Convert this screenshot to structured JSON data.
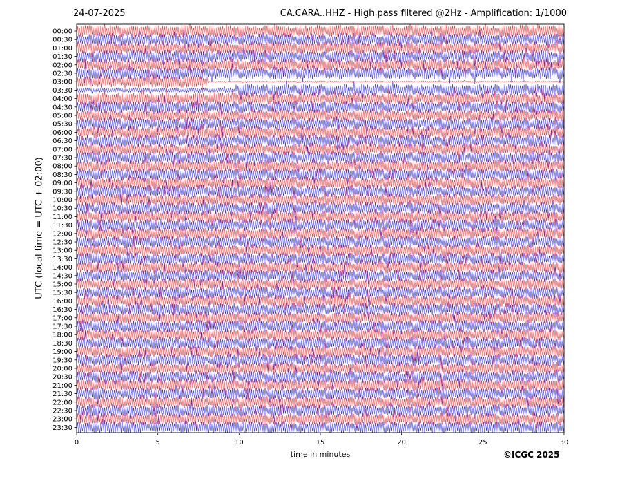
{
  "header": {
    "date": "24-07-2025",
    "title": "CA.CARA..HHZ - High pass filtered @2Hz - Amplification: 1/1000"
  },
  "footer": {
    "credit": "©ICGC 2025"
  },
  "colors": {
    "trace_a": "#ff0000",
    "trace_b": "#0000ff",
    "axes": "#000000",
    "background": "#ffffff"
  },
  "chart_data": {
    "type": "line",
    "title": "CA.CARA..HHZ - High pass filtered @2Hz - Amplification: 1/1000",
    "xlabel": "time in minutes",
    "ylabel": "UTC (local time = UTC + 02:00)",
    "xlim": [
      0,
      30
    ],
    "x_ticks": [
      "0",
      "5",
      "10",
      "15",
      "20",
      "25",
      "30"
    ],
    "x_tick_values": [
      0,
      5,
      10,
      15,
      20,
      25,
      30
    ],
    "row_labels": [
      "00:00",
      "00:30",
      "01:00",
      "01:30",
      "02:00",
      "02:30",
      "03:00",
      "03:30",
      "04:00",
      "04:30",
      "05:00",
      "05:30",
      "06:00",
      "06:30",
      "07:00",
      "07:30",
      "08:00",
      "08:30",
      "09:00",
      "09:30",
      "10:00",
      "10:30",
      "11:00",
      "11:30",
      "12:00",
      "12:30",
      "13:00",
      "13:30",
      "14:00",
      "14:30",
      "15:00",
      "15:30",
      "16:00",
      "16:30",
      "17:00",
      "17:30",
      "18:00",
      "18:30",
      "19:00",
      "19:30",
      "20:00",
      "20:30",
      "21:00",
      "21:30",
      "22:00",
      "22:30",
      "23:00",
      "23:30"
    ],
    "trace_colors_alternating": [
      "red",
      "blue"
    ],
    "grid": false,
    "legend": "none"
  }
}
